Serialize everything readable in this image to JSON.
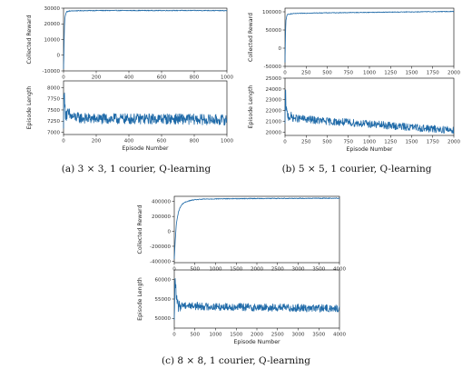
{
  "line_color": "#1f6aa8",
  "captions": {
    "a": "(a) 3 × 3, 1 courier, Q-learning",
    "b": "(b) 5 × 5, 1 courier, Q-learning",
    "c": "(c) 8 × 8, 1 courier, Q-learning"
  },
  "chart_data": [
    {
      "type": "line",
      "panel": "a-top",
      "ylabel": "Collected Reward",
      "xlim": [
        0,
        1000
      ],
      "ylim": [
        -10000,
        30000
      ],
      "xticks": [
        0,
        200,
        400,
        600,
        800,
        1000
      ],
      "xtick_labels": [
        "0",
        "200",
        "400",
        "600",
        "800",
        "1000"
      ],
      "yticks": [
        -10000,
        0,
        10000,
        20000,
        30000
      ],
      "ytick_labels": [
        "-10000",
        "0",
        "10000",
        "20000",
        "30000"
      ],
      "series": [
        {
          "x": [
            0,
            3,
            6,
            10,
            15,
            20,
            30,
            40,
            60,
            100,
            200,
            300,
            400,
            500,
            600,
            700,
            800,
            900,
            1000
          ],
          "y": [
            -9000,
            5000,
            20000,
            25000,
            27000,
            27800,
            28000,
            28200,
            28300,
            28400,
            28500,
            28500,
            28500,
            28500,
            28500,
            28500,
            28500,
            28500,
            28400
          ]
        }
      ]
    },
    {
      "type": "line",
      "panel": "a-bottom",
      "ylabel": "Episode Length",
      "xlabel": "Episode Number",
      "xlim": [
        0,
        1000
      ],
      "ylim": [
        6950,
        8150
      ],
      "xticks": [
        0,
        200,
        400,
        600,
        800,
        1000
      ],
      "xtick_labels": [
        "0",
        "200",
        "400",
        "600",
        "800",
        "1000"
      ],
      "yticks": [
        7000,
        7250,
        7500,
        7750,
        8000
      ],
      "ytick_labels": [
        "7000",
        "7250",
        "7500",
        "7750",
        "8000"
      ],
      "series": [
        {
          "x": [
            0,
            2,
            5,
            8,
            12,
            20,
            50,
            100,
            200,
            300,
            400,
            500,
            600,
            700,
            800,
            900,
            1000
          ],
          "y": [
            7000,
            8050,
            7800,
            7550,
            7450,
            7400,
            7350,
            7320,
            7300,
            7300,
            7300,
            7300,
            7300,
            7300,
            7290,
            7280,
            7280
          ],
          "noise_amplitude": 120
        }
      ]
    },
    {
      "type": "line",
      "panel": "b-top",
      "ylabel": "Collected Reward",
      "xlim": [
        0,
        2000
      ],
      "ylim": [
        -50000,
        110000
      ],
      "xticks": [
        0,
        250,
        500,
        750,
        1000,
        1250,
        1500,
        1750,
        2000
      ],
      "xtick_labels": [
        "0",
        "250",
        "500",
        "750",
        "1000",
        "1250",
        "1500",
        "1750",
        "2000"
      ],
      "yticks": [
        -50000,
        0,
        50000,
        100000
      ],
      "ytick_labels": [
        "-50000",
        "0",
        "50000",
        "100000"
      ],
      "series": [
        {
          "x": [
            0,
            5,
            10,
            20,
            30,
            50,
            100,
            200,
            400,
            600,
            800,
            1000,
            1200,
            1400,
            1600,
            1800,
            2000
          ],
          "y": [
            -40000,
            30000,
            75000,
            88000,
            92000,
            94000,
            95000,
            96000,
            97000,
            97500,
            98000,
            98500,
            99000,
            99500,
            100000,
            100500,
            101000
          ]
        }
      ]
    },
    {
      "type": "line",
      "panel": "b-bottom",
      "ylabel": "Episode Length",
      "xlabel": "Episode Number",
      "xlim": [
        0,
        2000
      ],
      "ylim": [
        19700,
        25000
      ],
      "xticks": [
        0,
        250,
        500,
        750,
        1000,
        1250,
        1500,
        1750,
        2000
      ],
      "xtick_labels": [
        "0",
        "250",
        "500",
        "750",
        "1000",
        "1250",
        "1500",
        "1750",
        "2000"
      ],
      "yticks": [
        20000,
        21000,
        22000,
        23000,
        24000,
        25000
      ],
      "ytick_labels": [
        "20000",
        "21000",
        "22000",
        "23000",
        "24000",
        "25000"
      ],
      "series": [
        {
          "x": [
            0,
            5,
            10,
            20,
            40,
            100,
            250,
            500,
            750,
            1000,
            1250,
            1500,
            1750,
            2000
          ],
          "y": [
            20500,
            24500,
            22500,
            21800,
            21500,
            21300,
            21200,
            21000,
            20900,
            20750,
            20600,
            20450,
            20300,
            20200
          ],
          "noise_amplitude": 350
        }
      ]
    },
    {
      "type": "line",
      "panel": "c-top",
      "ylabel": "Collected Reward",
      "xlim": [
        0,
        4000
      ],
      "ylim": [
        -420000,
        470000
      ],
      "xticks": [
        0,
        500,
        1000,
        1500,
        2000,
        2500,
        3000,
        3500,
        4000
      ],
      "xtick_labels": [
        "0",
        "500",
        "1000",
        "1500",
        "2000",
        "2500",
        "3000",
        "3500",
        "4000"
      ],
      "yticks": [
        -400000,
        -200000,
        0,
        200000,
        400000
      ],
      "ytick_labels": [
        "-400000",
        "-200000",
        "0",
        "200000",
        "400000"
      ],
      "series": [
        {
          "x": [
            0,
            20,
            50,
            100,
            150,
            200,
            300,
            400,
            500,
            700,
            1000,
            1500,
            2000,
            2500,
            3000,
            3500,
            4000
          ],
          "y": [
            -380000,
            -150000,
            100000,
            260000,
            330000,
            370000,
            400000,
            415000,
            425000,
            432000,
            436000,
            439000,
            441000,
            442000,
            443000,
            444000,
            445000
          ]
        }
      ]
    },
    {
      "type": "line",
      "panel": "c-bottom",
      "ylabel": "Episode Length",
      "xlabel": "Episode Number",
      "xlim": [
        0,
        4000
      ],
      "ylim": [
        47500,
        62500
      ],
      "xticks": [
        0,
        500,
        1000,
        1500,
        2000,
        2500,
        3000,
        3500,
        4000
      ],
      "xtick_labels": [
        "0",
        "500",
        "1000",
        "1500",
        "2000",
        "2500",
        "3000",
        "3500",
        "4000"
      ],
      "yticks": [
        50000,
        55000,
        60000
      ],
      "ytick_labels": [
        "50000",
        "55000",
        "60000"
      ],
      "series": [
        {
          "x": [
            0,
            20,
            50,
            100,
            200,
            500,
            1000,
            1500,
            2000,
            2500,
            3000,
            3500,
            4000
          ],
          "y": [
            48500,
            61500,
            55000,
            53000,
            53500,
            53200,
            53000,
            53000,
            52800,
            52800,
            52700,
            52600,
            52500
          ],
          "noise_amplitude": 1000
        }
      ]
    }
  ]
}
